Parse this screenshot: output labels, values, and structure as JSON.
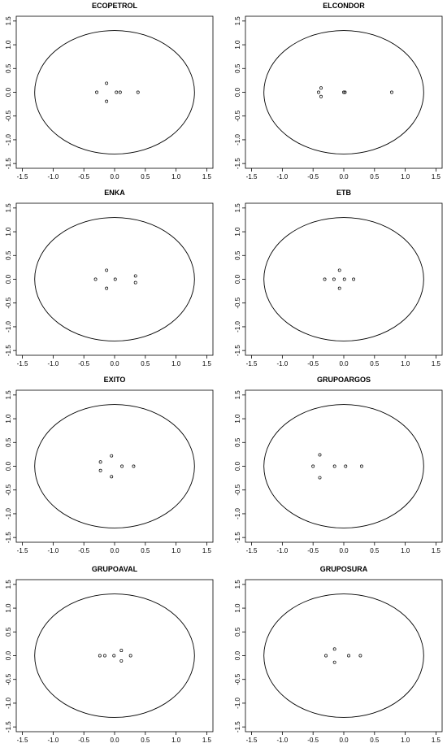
{
  "chart_data": [
    {
      "type": "scatter",
      "title": "ECOPETROL",
      "xlim": [
        -1.6,
        1.6
      ],
      "ylim": [
        -1.6,
        1.6
      ],
      "x_ticks": [
        "-1.5",
        "-1.0",
        "-0.5",
        "0.0",
        "0.5",
        "1.0",
        "1.5"
      ],
      "y_ticks": [
        "-1.5",
        "-1.0",
        "-0.5",
        "0.0",
        "0.5",
        "1.0",
        "1.5"
      ],
      "circle": {
        "center": [
          0,
          0
        ],
        "radius": 1.3
      },
      "points": [
        [
          -0.29,
          0
        ],
        [
          -0.13,
          0.19
        ],
        [
          -0.13,
          -0.19
        ],
        [
          0.03,
          0
        ],
        [
          0.09,
          0
        ],
        [
          0.38,
          0
        ]
      ]
    },
    {
      "type": "scatter",
      "title": "ELCONDOR",
      "xlim": [
        -1.6,
        1.6
      ],
      "ylim": [
        -1.6,
        1.6
      ],
      "x_ticks": [
        "-1.5",
        "-1.0",
        "-0.5",
        "0.0",
        "0.5",
        "1.0",
        "1.5"
      ],
      "y_ticks": [
        "-1.5",
        "-1.0",
        "-0.5",
        "0.0",
        "0.5",
        "1.0",
        "1.5"
      ],
      "circle": {
        "center": [
          0,
          0
        ],
        "radius": 1.3
      },
      "points": [
        [
          -0.41,
          0
        ],
        [
          -0.37,
          0.09
        ],
        [
          -0.37,
          -0.09
        ],
        [
          0.0,
          0
        ],
        [
          0.02,
          0
        ],
        [
          0.78,
          0
        ]
      ]
    },
    {
      "type": "scatter",
      "title": "ENKA",
      "xlim": [
        -1.6,
        1.6
      ],
      "ylim": [
        -1.6,
        1.6
      ],
      "x_ticks": [
        "-1.5",
        "-1.0",
        "-0.5",
        "0.0",
        "0.5",
        "1.0",
        "1.5"
      ],
      "y_ticks": [
        "-1.5",
        "-1.0",
        "-0.5",
        "0.0",
        "0.5",
        "1.0",
        "1.5"
      ],
      "circle": {
        "center": [
          0,
          0
        ],
        "radius": 1.3
      },
      "points": [
        [
          -0.31,
          0
        ],
        [
          -0.13,
          0.19
        ],
        [
          -0.13,
          -0.19
        ],
        [
          0.01,
          0
        ],
        [
          0.34,
          0.07
        ],
        [
          0.34,
          -0.07
        ]
      ]
    },
    {
      "type": "scatter",
      "title": "ETB",
      "xlim": [
        -1.6,
        1.6
      ],
      "ylim": [
        -1.6,
        1.6
      ],
      "x_ticks": [
        "-1.5",
        "-1.0",
        "-0.5",
        "0.0",
        "0.5",
        "1.0",
        "1.5"
      ],
      "y_ticks": [
        "-1.5",
        "-1.0",
        "-0.5",
        "0.0",
        "0.5",
        "1.0",
        "1.5"
      ],
      "circle": {
        "center": [
          0,
          0
        ],
        "radius": 1.3
      },
      "points": [
        [
          -0.31,
          0
        ],
        [
          -0.16,
          0
        ],
        [
          -0.07,
          0.19
        ],
        [
          -0.07,
          -0.19
        ],
        [
          0.01,
          0
        ],
        [
          0.16,
          0
        ]
      ]
    },
    {
      "type": "scatter",
      "title": "EXITO",
      "xlim": [
        -1.6,
        1.6
      ],
      "ylim": [
        -1.6,
        1.6
      ],
      "x_ticks": [
        "-1.5",
        "-1.0",
        "-0.5",
        "0.0",
        "0.5",
        "1.0",
        "1.5"
      ],
      "y_ticks": [
        "-1.5",
        "-1.0",
        "-0.5",
        "0.0",
        "0.5",
        "1.0",
        "1.5"
      ],
      "circle": {
        "center": [
          0,
          0
        ],
        "radius": 1.3
      },
      "points": [
        [
          -0.23,
          0.09
        ],
        [
          -0.23,
          -0.09
        ],
        [
          -0.05,
          0.22
        ],
        [
          -0.05,
          -0.22
        ],
        [
          0.12,
          0
        ],
        [
          0.31,
          0
        ]
      ]
    },
    {
      "type": "scatter",
      "title": "GRUPOARGOS",
      "xlim": [
        -1.6,
        1.6
      ],
      "ylim": [
        -1.6,
        1.6
      ],
      "x_ticks": [
        "-1.5",
        "-1.0",
        "-0.5",
        "0.0",
        "0.5",
        "1.0",
        "1.5"
      ],
      "y_ticks": [
        "-1.5",
        "-1.0",
        "-0.5",
        "0.0",
        "0.5",
        "1.0",
        "1.5"
      ],
      "circle": {
        "center": [
          0,
          0
        ],
        "radius": 1.3
      },
      "points": [
        [
          -0.5,
          0
        ],
        [
          -0.39,
          0.24
        ],
        [
          -0.39,
          -0.24
        ],
        [
          -0.15,
          0
        ],
        [
          0.03,
          0
        ],
        [
          0.29,
          0
        ]
      ]
    },
    {
      "type": "scatter",
      "title": "GRUPOAVAL",
      "xlim": [
        -1.6,
        1.6
      ],
      "ylim": [
        -1.6,
        1.6
      ],
      "x_ticks": [
        "-1.5",
        "-1.0",
        "-0.5",
        "0.0",
        "0.5",
        "1.0",
        "1.5"
      ],
      "y_ticks": [
        "-1.5",
        "-1.0",
        "-0.5",
        "0.0",
        "0.5",
        "1.0",
        "1.5"
      ],
      "circle": {
        "center": [
          0,
          0
        ],
        "radius": 1.3
      },
      "points": [
        [
          -0.24,
          0
        ],
        [
          -0.16,
          0
        ],
        [
          -0.01,
          0
        ],
        [
          0.11,
          0.11
        ],
        [
          0.11,
          -0.11
        ],
        [
          0.26,
          0
        ]
      ]
    },
    {
      "type": "scatter",
      "title": "GRUPOSURA",
      "xlim": [
        -1.6,
        1.6
      ],
      "ylim": [
        -1.6,
        1.6
      ],
      "x_ticks": [
        "-1.5",
        "-1.0",
        "-0.5",
        "0.0",
        "0.5",
        "1.0",
        "1.5"
      ],
      "y_ticks": [
        "-1.5",
        "-1.0",
        "-0.5",
        "0.0",
        "0.5",
        "1.0",
        "1.5"
      ],
      "circle": {
        "center": [
          0,
          0
        ],
        "radius": 1.3
      },
      "points": [
        [
          -0.29,
          0
        ],
        [
          -0.15,
          0.14
        ],
        [
          -0.15,
          -0.14
        ],
        [
          0.08,
          0
        ],
        [
          0.27,
          0
        ]
      ]
    }
  ]
}
